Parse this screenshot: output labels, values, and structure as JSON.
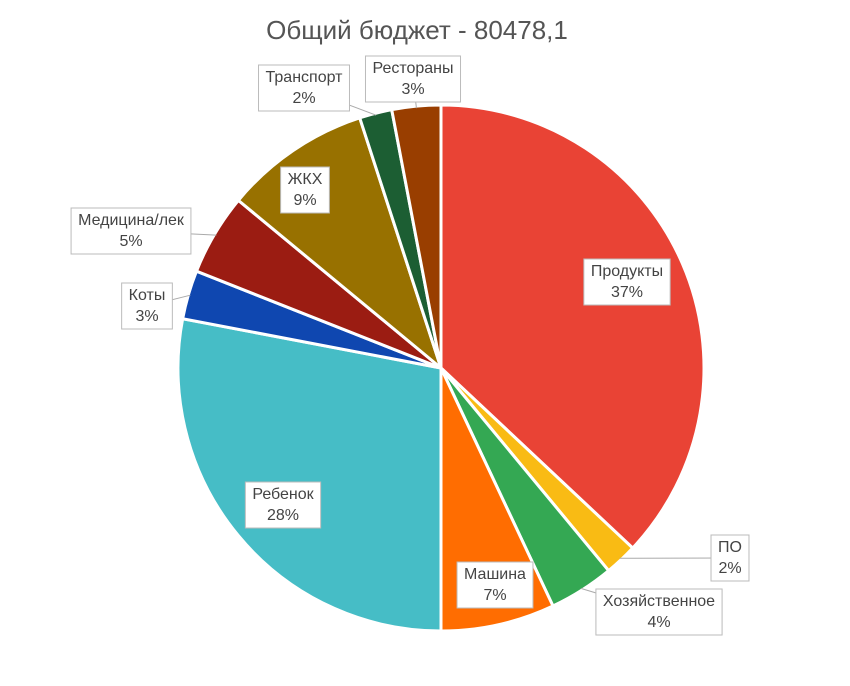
{
  "chart_data": {
    "type": "pie",
    "title": "Общий бюджет - 80478,1",
    "categories": [
      "Продукты",
      "ПО",
      "Хозяйственное",
      "Машина",
      "Ребенок",
      "Коты",
      "Медицина/лек",
      "ЖКХ",
      "Транспорт",
      "Рестораны"
    ],
    "values": [
      37,
      2,
      4,
      7,
      28,
      3,
      5,
      9,
      2,
      3
    ],
    "value_labels": [
      "37%",
      "2%",
      "4%",
      "7%",
      "28%",
      "3%",
      "5%",
      "9%",
      "2%",
      "3%"
    ],
    "colors": [
      "#e94335",
      "#f9bb14",
      "#34a853",
      "#ff6d01",
      "#46bdc6",
      "#0f47b0",
      "#9b1c12",
      "#987100",
      "#1c5e33",
      "#993e00"
    ]
  }
}
